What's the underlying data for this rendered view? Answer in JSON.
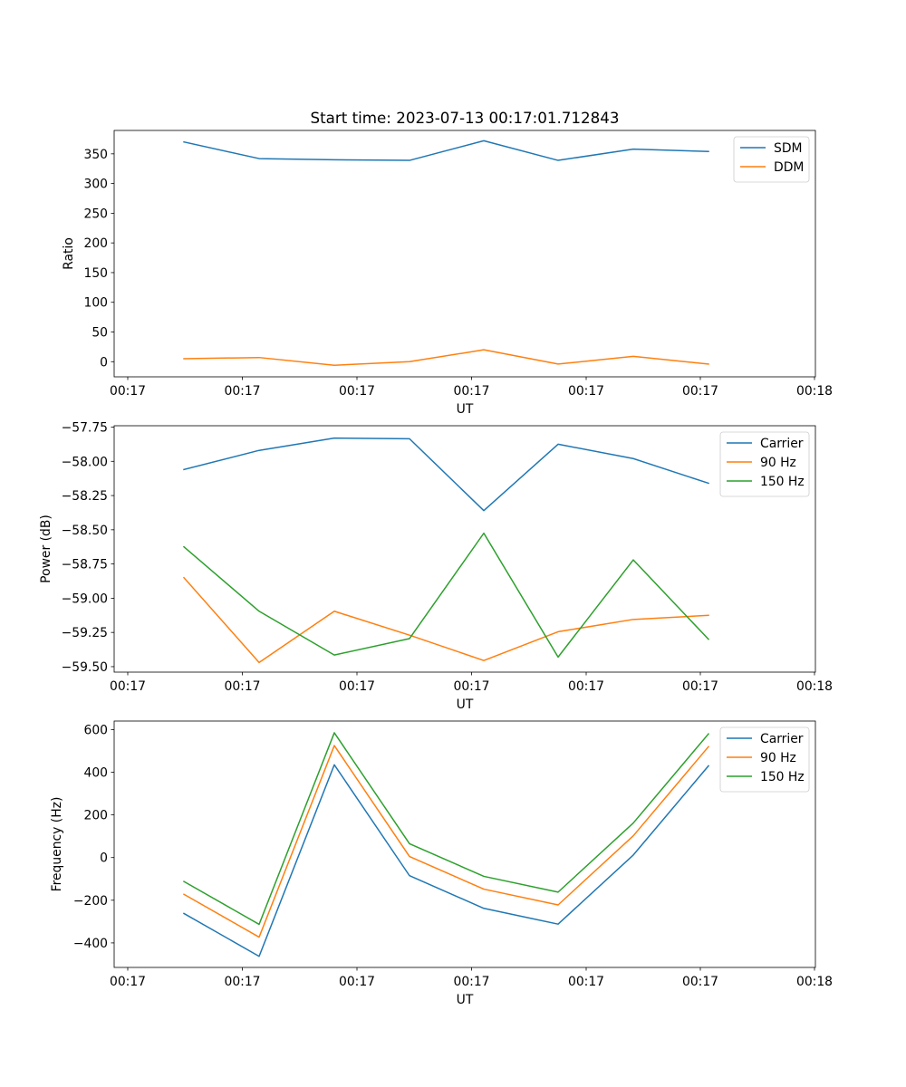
{
  "chart_data": [
    {
      "type": "line",
      "title": "Start time: 2023-07-13 00:17:01.712843",
      "xlabel": "UT",
      "ylabel": "Ratio",
      "x_tick_labels": [
        "00:17",
        "00:17",
        "00:17",
        "00:17",
        "00:17",
        "00:17",
        "00:17",
        "00:18"
      ],
      "y_ticks": [
        0,
        50,
        100,
        150,
        200,
        250,
        300,
        350
      ],
      "y_tick_labels": [
        "0",
        "50",
        "100",
        "150",
        "200",
        "250",
        "300",
        "350"
      ],
      "ylim": [
        -25.5,
        389.4
      ],
      "legend_position": "top-right",
      "series": [
        {
          "name": "SDM",
          "color": "#1f77b4",
          "values": [
            370,
            342,
            340,
            339,
            372,
            339,
            358,
            354
          ]
        },
        {
          "name": "DDM",
          "color": "#ff7f0e",
          "values": [
            5,
            7,
            -6,
            0,
            20,
            -4,
            9,
            -4
          ]
        }
      ]
    },
    {
      "type": "line",
      "title": "",
      "xlabel": "UT",
      "ylabel": "Power (dB)",
      "x_tick_labels": [
        "00:17",
        "00:17",
        "00:17",
        "00:17",
        "00:17",
        "00:17",
        "00:17",
        "00:18"
      ],
      "y_ticks": [
        -59.5,
        -59.25,
        -59.0,
        -58.75,
        -58.5,
        -58.25,
        -58.0,
        -57.75
      ],
      "y_tick_labels": [
        "−59.50",
        "−59.25",
        "−59.00",
        "−58.75",
        "−58.50",
        "−58.25",
        "−58.00",
        "−57.75"
      ],
      "ylim": [
        -59.54,
        -57.74
      ],
      "legend_position": "top-right",
      "series": [
        {
          "name": "Carrier",
          "color": "#1f77b4",
          "values": [
            -58.06,
            -57.92,
            -57.83,
            -57.835,
            -58.36,
            -57.875,
            -57.98,
            -58.16
          ]
        },
        {
          "name": "90 Hz",
          "color": "#ff7f0e",
          "values": [
            -58.85,
            -59.47,
            -59.095,
            -59.27,
            -59.455,
            -59.245,
            -59.155,
            -59.125
          ]
        },
        {
          "name": "150 Hz",
          "color": "#2ca02c",
          "values": [
            -58.625,
            -59.095,
            -59.415,
            -59.295,
            -58.525,
            -59.43,
            -58.72,
            -59.3
          ]
        }
      ]
    },
    {
      "type": "line",
      "title": "",
      "xlabel": "UT",
      "ylabel": "Frequency (Hz)",
      "x_tick_labels": [
        "00:17",
        "00:17",
        "00:17",
        "00:17",
        "00:17",
        "00:17",
        "00:17",
        "00:18"
      ],
      "y_ticks": [
        -400,
        -200,
        0,
        200,
        400,
        600
      ],
      "y_tick_labels": [
        "−400",
        "−200",
        "0",
        "200",
        "400",
        "600"
      ],
      "ylim": [
        -515,
        640
      ],
      "legend_position": "top-right",
      "series": [
        {
          "name": "Carrier",
          "color": "#1f77b4",
          "values": [
            -262,
            -463,
            435,
            -85,
            -238,
            -312,
            12,
            430
          ]
        },
        {
          "name": "90 Hz",
          "color": "#ff7f0e",
          "values": [
            -172,
            -373,
            525,
            5,
            -148,
            -222,
            102,
            520
          ]
        },
        {
          "name": "150 Hz",
          "color": "#2ca02c",
          "values": [
            -112,
            -313,
            585,
            65,
            -88,
            -162,
            162,
            580
          ]
        }
      ]
    }
  ]
}
